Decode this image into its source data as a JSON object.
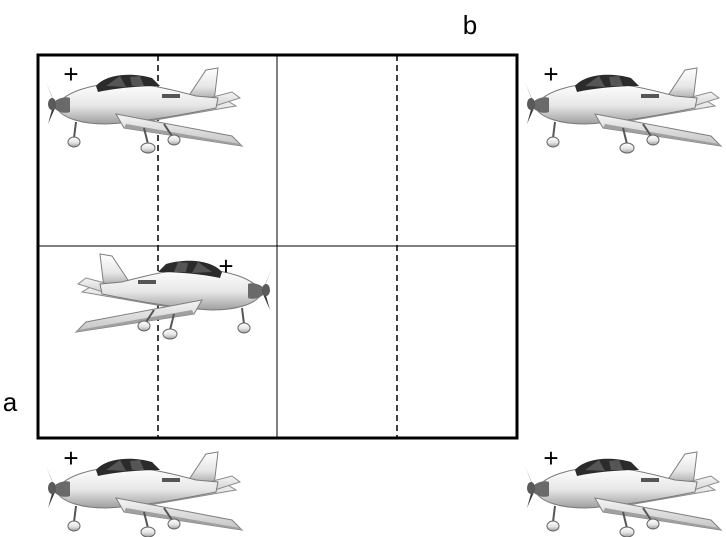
{
  "labels": {
    "a": "a",
    "b": "b"
  },
  "markers": {
    "cross": "+"
  },
  "icons": {
    "aircraft": "airplane-icon"
  },
  "colors": {
    "line": "#000000",
    "fuselage": "#eeeeee",
    "fuselage_shade": "#b9b9b9",
    "window": "#222222",
    "wheel": "#444444"
  }
}
